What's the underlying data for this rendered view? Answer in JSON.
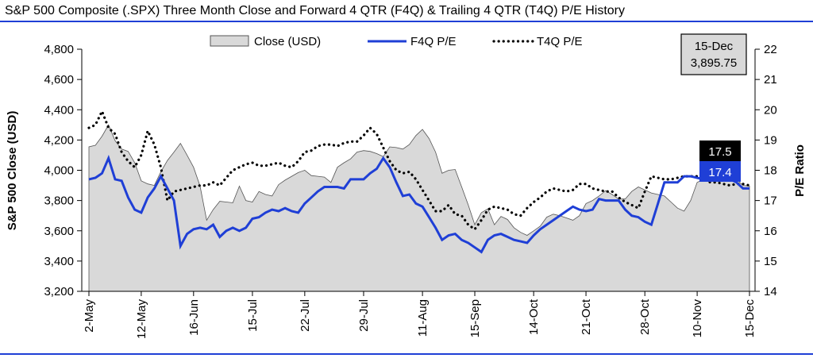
{
  "chart_data": {
    "type": "area",
    "title": "S&P 500 Composite (.SPX) Three Month Close and Forward 4 QTR (F4Q) & Trailing 4 QTR (T4Q) P/E History",
    "ylabel_left": "S&P 500 Close (USD)",
    "ylabel_right": "P/E Ratio",
    "ylim_left": [
      3200,
      4800
    ],
    "ylim_right": [
      14,
      22
    ],
    "yticks_left": [
      "3,200",
      "3,400",
      "3,600",
      "3,800",
      "4,000",
      "4,200",
      "4,400",
      "4,600",
      "4,800"
    ],
    "yticks_right": [
      "14",
      "15",
      "16",
      "17",
      "18",
      "19",
      "20",
      "21",
      "22"
    ],
    "ytick_values_left": [
      3200,
      3400,
      3600,
      3800,
      4000,
      4200,
      4400,
      4600,
      4800
    ],
    "ytick_values_right": [
      14,
      15,
      16,
      17,
      18,
      19,
      20,
      21,
      22
    ],
    "x_ticks": [
      {
        "label": "2-May",
        "index": 0
      },
      {
        "label": "12-May",
        "index": 8
      },
      {
        "label": "16-Jun",
        "index": 16
      },
      {
        "label": "15-Jul",
        "index": 25
      },
      {
        "label": "22-Jul",
        "index": 33
      },
      {
        "label": "29-Jul",
        "index": 42
      },
      {
        "label": "11-Aug",
        "index": 51
      },
      {
        "label": "15-Sep",
        "index": 59
      },
      {
        "label": "14-Oct",
        "index": 68
      },
      {
        "label": "21-Oct",
        "index": 76
      },
      {
        "label": "28-Oct",
        "index": 85
      },
      {
        "label": "10-Nov",
        "index": 93
      },
      {
        "label": "15-Dec",
        "index": 101
      }
    ],
    "legend_position": "top-center",
    "series": [
      {
        "name": "Close (USD)",
        "kind": "area",
        "axis": "left",
        "color": "#d9d9d9",
        "values": [
          4155,
          4165,
          4225,
          4300,
          4195,
          4140,
          4125,
          4050,
          3930,
          3910,
          3900,
          3990,
          4065,
          4120,
          4178,
          4100,
          4020,
          3895,
          3670,
          3740,
          3795,
          3790,
          3785,
          3895,
          3800,
          3790,
          3860,
          3840,
          3830,
          3905,
          3935,
          3960,
          3985,
          4000,
          3965,
          3960,
          3955,
          3920,
          4020,
          4050,
          4075,
          4120,
          4130,
          4125,
          4110,
          4090,
          4155,
          4150,
          4140,
          4170,
          4230,
          4270,
          4210,
          4120,
          3980,
          4000,
          4005,
          3890,
          3770,
          3640,
          3720,
          3745,
          3640,
          3695,
          3675,
          3620,
          3590,
          3570,
          3600,
          3630,
          3690,
          3710,
          3700,
          3685,
          3670,
          3700,
          3780,
          3800,
          3830,
          3865,
          3840,
          3810,
          3810,
          3860,
          3890,
          3870,
          3850,
          3840,
          3830,
          3790,
          3750,
          3730,
          3800,
          3920,
          3940,
          3960,
          3990,
          3995,
          3990,
          3940,
          3900,
          3895.75
        ]
      },
      {
        "name": "F4Q P/E",
        "kind": "line",
        "axis": "right",
        "color": "#1f3fd6",
        "values": [
          17.7,
          17.75,
          17.9,
          18.4,
          17.7,
          17.65,
          17.1,
          16.7,
          16.6,
          17.1,
          17.4,
          17.8,
          17.4,
          17.0,
          15.5,
          15.9,
          16.05,
          16.1,
          16.05,
          16.2,
          15.8,
          16.0,
          16.1,
          16.0,
          16.1,
          16.4,
          16.45,
          16.6,
          16.7,
          16.65,
          16.75,
          16.65,
          16.6,
          16.9,
          17.1,
          17.3,
          17.45,
          17.45,
          17.45,
          17.4,
          17.7,
          17.7,
          17.7,
          17.9,
          18.05,
          18.4,
          18.1,
          17.6,
          17.15,
          17.2,
          16.9,
          16.8,
          16.45,
          16.1,
          15.7,
          15.85,
          15.9,
          15.7,
          15.6,
          15.45,
          15.3,
          15.7,
          15.85,
          15.9,
          15.8,
          15.7,
          15.65,
          15.6,
          15.85,
          16.05,
          16.2,
          16.35,
          16.5,
          16.65,
          16.8,
          16.7,
          16.65,
          16.7,
          17.05,
          17.0,
          17.0,
          17.0,
          16.7,
          16.5,
          16.45,
          16.3,
          16.2,
          16.9,
          17.6,
          17.6,
          17.6,
          17.8,
          17.8,
          17.75,
          17.7,
          17.65,
          17.7,
          17.75,
          17.7,
          17.6,
          17.4,
          17.4
        ]
      },
      {
        "name": "T4Q P/E",
        "kind": "line",
        "dashed": true,
        "axis": "right",
        "color": "#000000",
        "values": [
          19.4,
          19.5,
          19.95,
          19.4,
          19.2,
          18.6,
          18.3,
          18.1,
          18.5,
          19.3,
          18.85,
          18.1,
          17.0,
          17.3,
          17.35,
          17.4,
          17.45,
          17.5,
          17.5,
          17.6,
          17.5,
          17.75,
          18.0,
          18.1,
          18.2,
          18.25,
          18.15,
          18.15,
          18.2,
          18.25,
          18.15,
          18.1,
          18.3,
          18.6,
          18.65,
          18.8,
          18.85,
          18.85,
          18.8,
          18.9,
          18.95,
          18.95,
          19.15,
          19.4,
          19.2,
          18.75,
          18.3,
          18.0,
          17.9,
          17.95,
          17.7,
          17.35,
          17.0,
          16.65,
          16.65,
          16.85,
          16.55,
          16.5,
          16.2,
          16.05,
          16.35,
          16.7,
          16.8,
          16.75,
          16.7,
          16.55,
          16.5,
          16.75,
          16.95,
          17.1,
          17.3,
          17.4,
          17.35,
          17.3,
          17.35,
          17.55,
          17.55,
          17.4,
          17.35,
          17.3,
          17.3,
          17.1,
          16.95,
          16.85,
          16.75,
          17.3,
          17.8,
          17.75,
          17.7,
          17.7,
          17.75,
          17.8,
          17.8,
          17.8,
          17.7,
          17.6,
          17.6,
          17.55,
          17.5,
          17.55,
          17.55,
          17.5
        ]
      }
    ],
    "callout": {
      "date": "15-Dec",
      "value": "3,895.75"
    },
    "end_labels": [
      {
        "series": "T4Q P/E",
        "text": "17.5",
        "color": "#000000"
      },
      {
        "series": "F4Q P/E",
        "text": "17.4",
        "color": "#1f3fd6"
      }
    ]
  }
}
